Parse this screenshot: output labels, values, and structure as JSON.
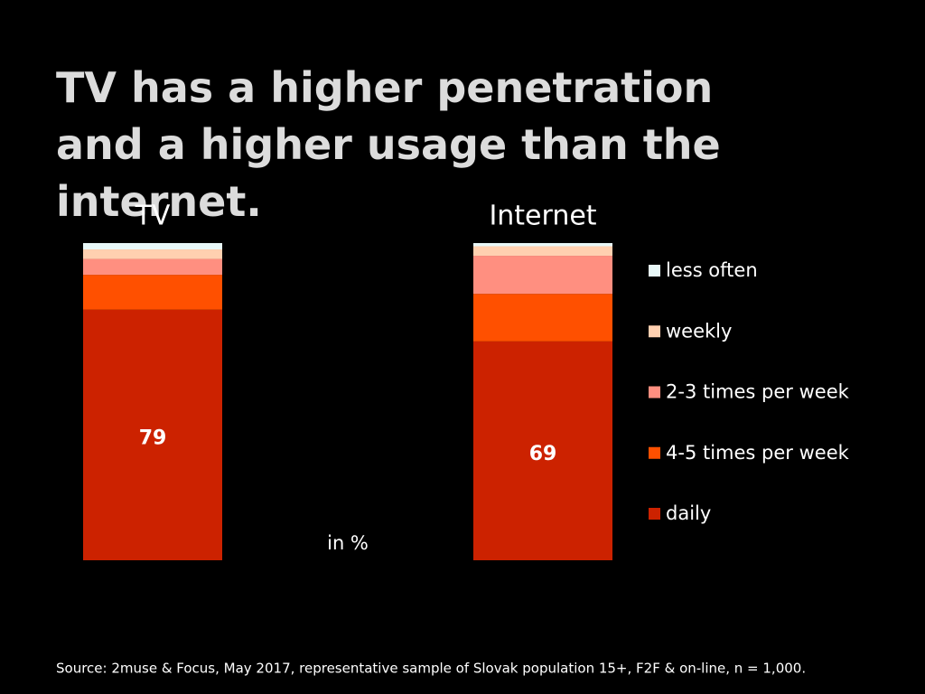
{
  "chart_data": {
    "type": "stacked-bar",
    "title": "TV has a higher penetration and a higher usage than the internet.",
    "unit_note": "in %",
    "source": "Source: 2muse & Focus, May 2017, representative sample of Slovak population 15+, F2F & on-line, n = 1,000.",
    "categories": [
      "TV",
      "Internet"
    ],
    "ylim": [
      0,
      100
    ],
    "series": [
      {
        "name": "daily",
        "color": "#cc2200",
        "values": [
          79,
          69
        ],
        "show_values": true
      },
      {
        "name": "4-5 times per week",
        "color": "#ff5000",
        "values": [
          11,
          15
        ]
      },
      {
        "name": "2-3 times per week",
        "color": "#ff8f80",
        "values": [
          5,
          12
        ]
      },
      {
        "name": "weekly",
        "color": "#ffd0b0",
        "values": [
          3,
          3
        ]
      },
      {
        "name": "less often",
        "color": "#e8f8f8",
        "values": [
          2,
          1
        ]
      }
    ]
  }
}
